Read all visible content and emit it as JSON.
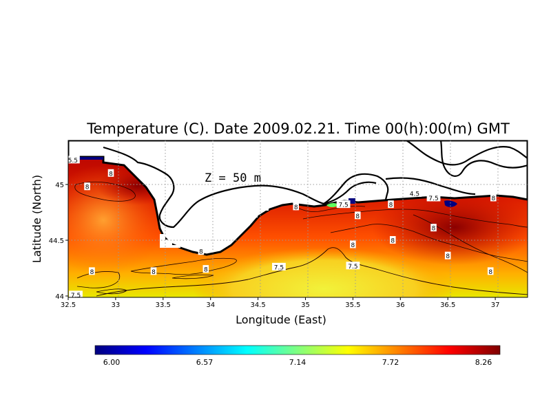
{
  "title": "Temperature (C). Date 2009.02.21. Time 00(h):00(m) GMT",
  "depth_label": "Z = 50 m",
  "xlabel": "Longitude (East)",
  "ylabel": "Latitude (North)",
  "x_ticks": [
    "32.5",
    "33",
    "33.5",
    "34",
    "34.5",
    "35",
    "35.5",
    "36",
    "36.5",
    "37"
  ],
  "y_ticks": [
    "44",
    "44.5",
    "45"
  ],
  "colorbar": {
    "ticks": [
      "6.00",
      "6.57",
      "7.14",
      "7.72",
      "8.26"
    ],
    "min": 6.0,
    "max": 8.26,
    "colors": [
      "#00007f",
      "#0000ff",
      "#0080ff",
      "#00ffff",
      "#80ff80",
      "#ffff00",
      "#ff8000",
      "#ff0000",
      "#7f0000"
    ]
  },
  "contour_labels": [
    {
      "text": "8",
      "lon": 32.95,
      "lat": 45.1
    },
    {
      "text": "8",
      "lon": 32.7,
      "lat": 44.98
    },
    {
      "text": "8",
      "lon": 32.75,
      "lat": 44.22
    },
    {
      "text": "8",
      "lon": 33.4,
      "lat": 44.22
    },
    {
      "text": "8",
      "lon": 33.9,
      "lat": 44.4
    },
    {
      "text": "8",
      "lon": 33.95,
      "lat": 44.24
    },
    {
      "text": "7.5",
      "lon": 34.72,
      "lat": 44.26
    },
    {
      "text": "8",
      "lon": 34.9,
      "lat": 44.8
    },
    {
      "text": "7.5",
      "lon": 35.4,
      "lat": 44.82
    },
    {
      "text": "8",
      "lon": 35.55,
      "lat": 44.72
    },
    {
      "text": "8",
      "lon": 35.5,
      "lat": 44.46
    },
    {
      "text": "7.5",
      "lon": 35.5,
      "lat": 44.27
    },
    {
      "text": "8",
      "lon": 35.9,
      "lat": 44.82
    },
    {
      "text": "8",
      "lon": 35.92,
      "lat": 44.5
    },
    {
      "text": "4.5",
      "lon": 36.15,
      "lat": 44.92
    },
    {
      "text": "7.5",
      "lon": 36.35,
      "lat": 44.88
    },
    {
      "text": "8",
      "lon": 36.35,
      "lat": 44.61
    },
    {
      "text": "8",
      "lon": 36.5,
      "lat": 44.36
    },
    {
      "text": "8",
      "lon": 36.98,
      "lat": 44.88
    },
    {
      "text": "8",
      "lon": 36.95,
      "lat": 44.22
    },
    {
      "text": "5.5",
      "lon": 32.55,
      "lat": 45.22
    },
    {
      "text": "7.5",
      "lon": 32.58,
      "lat": 44.01
    }
  ]
}
